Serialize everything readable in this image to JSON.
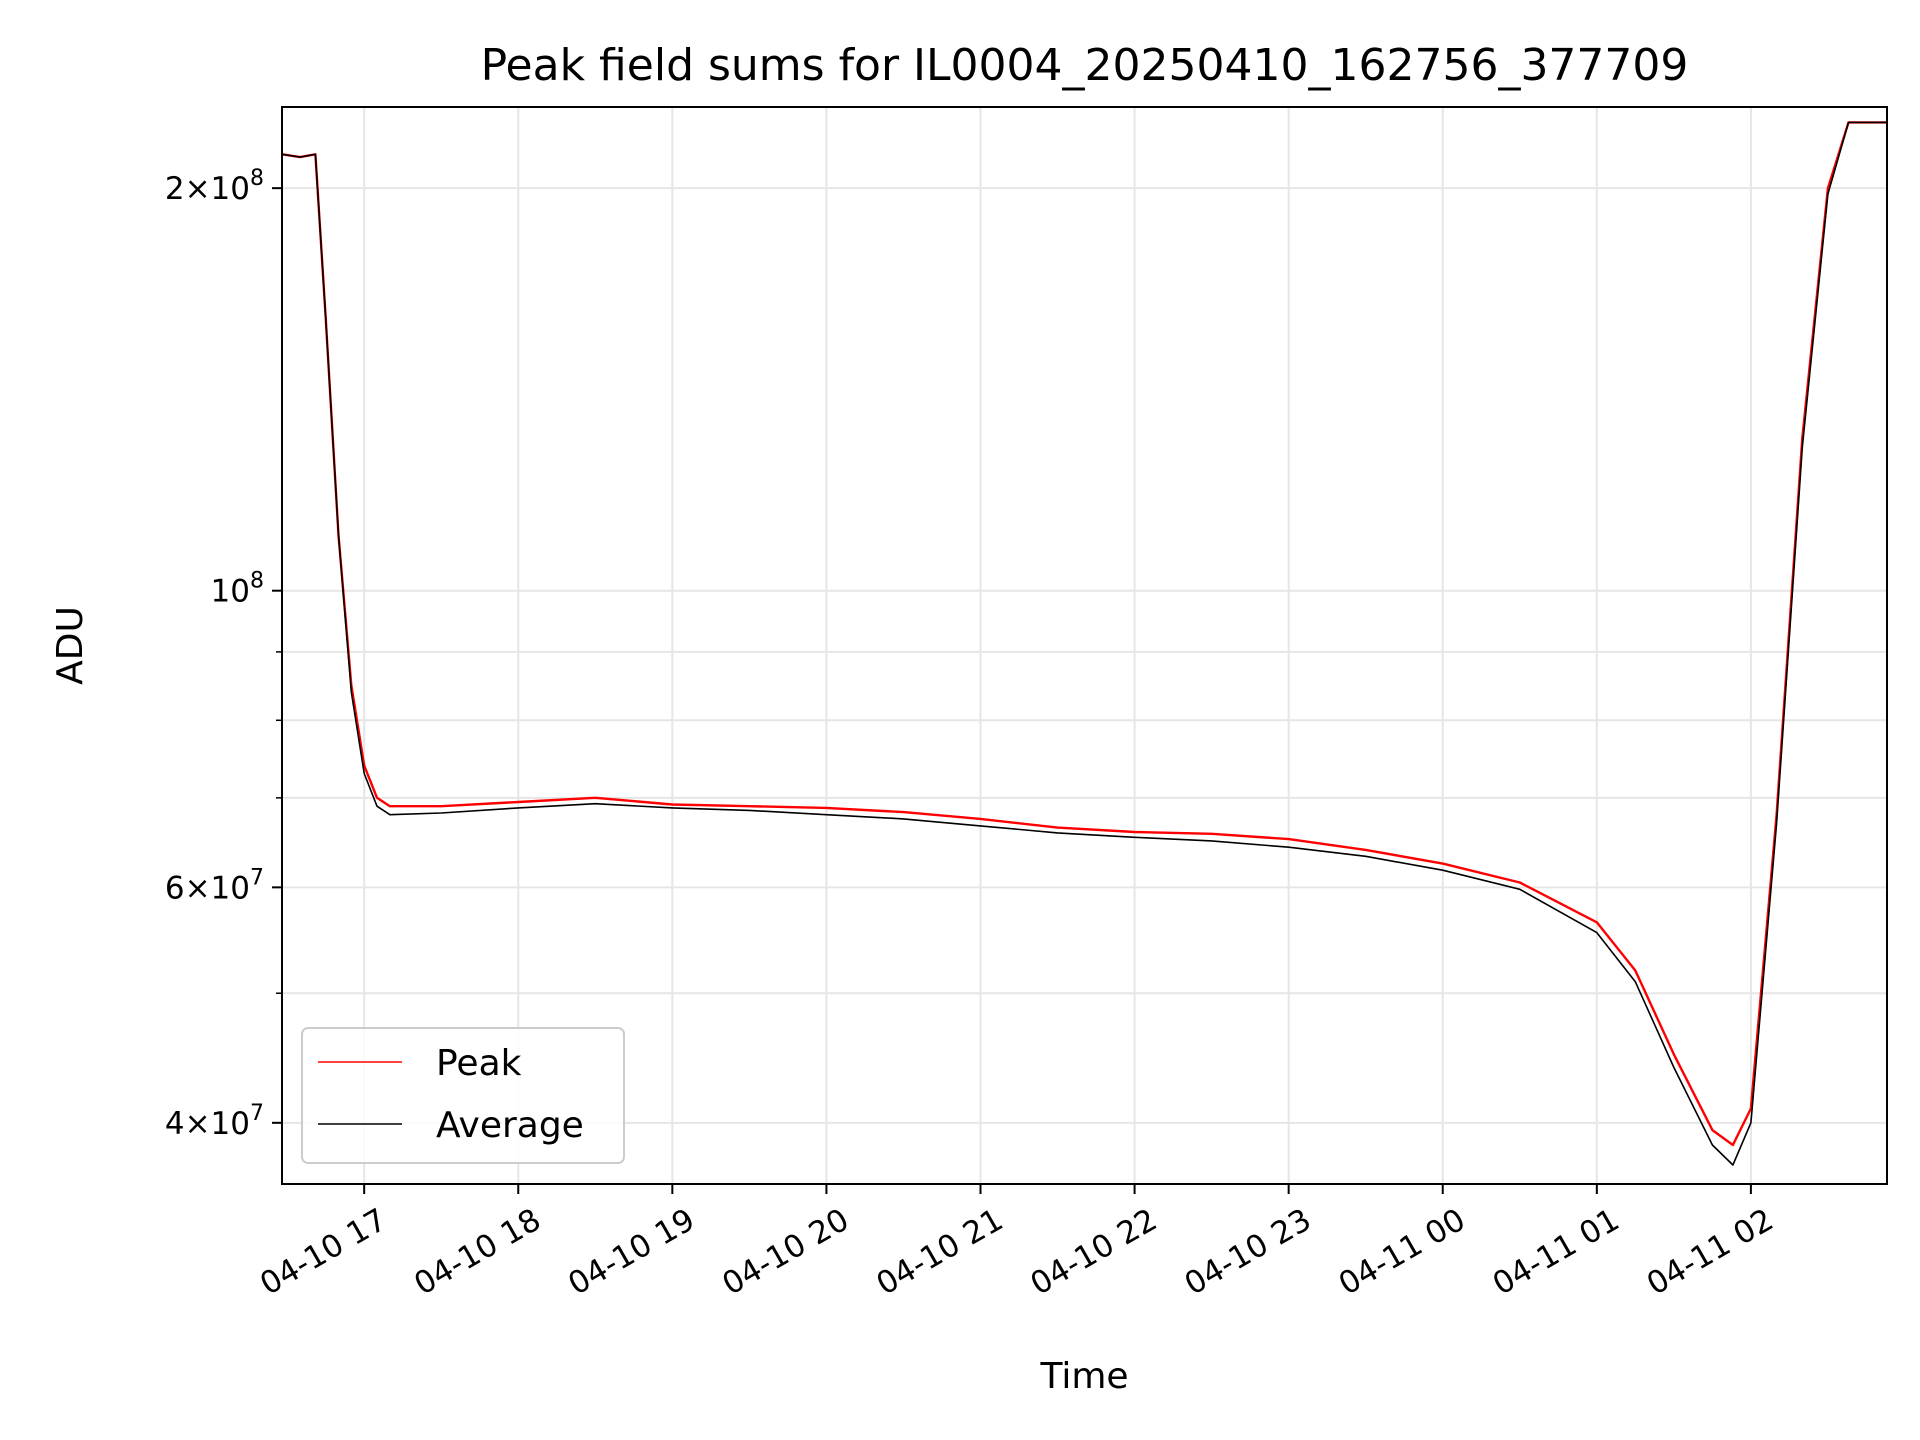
{
  "chart_data": {
    "type": "line",
    "title": "Peak field sums for IL0004_20250410_162756_377709",
    "xlabel": "Time",
    "ylabel": "ADU",
    "y_scale": "log",
    "ylim": [
      36000000,
      230000000
    ],
    "xlim": [
      "2025-04-10 16:28",
      "2025-04-11 02:53"
    ],
    "grid": true,
    "legend_position": "lower-left",
    "x_ticks": [
      {
        "label": "04-10 17",
        "time": "2025-04-10 17:00"
      },
      {
        "label": "04-10 18",
        "time": "2025-04-10 18:00"
      },
      {
        "label": "04-10 19",
        "time": "2025-04-10 19:00"
      },
      {
        "label": "04-10 20",
        "time": "2025-04-10 20:00"
      },
      {
        "label": "04-10 21",
        "time": "2025-04-10 21:00"
      },
      {
        "label": "04-10 22",
        "time": "2025-04-10 22:00"
      },
      {
        "label": "04-10 23",
        "time": "2025-04-10 23:00"
      },
      {
        "label": "04-11 00",
        "time": "2025-04-11 00:00"
      },
      {
        "label": "04-11 01",
        "time": "2025-04-11 01:00"
      },
      {
        "label": "04-11 02",
        "time": "2025-04-11 02:00"
      }
    ],
    "y_ticks": [
      {
        "value": 40000000,
        "mant": "4",
        "exp": "7"
      },
      {
        "value": 60000000,
        "mant": "6",
        "exp": "7"
      },
      {
        "value": 100000000,
        "mant": "",
        "exp": "8"
      },
      {
        "value": 200000000,
        "mant": "2",
        "exp": "8"
      }
    ],
    "y_minor_ticks": [
      50000000,
      70000000,
      80000000,
      90000000
    ],
    "series": [
      {
        "name": "Peak",
        "color": "#ff0000",
        "points": [
          [
            "2025-04-10 16:28",
            212000000
          ],
          [
            "2025-04-10 16:35",
            211000000
          ],
          [
            "2025-04-10 16:41",
            212000000
          ],
          [
            "2025-04-10 16:45",
            160000000
          ],
          [
            "2025-04-10 16:50",
            110000000
          ],
          [
            "2025-04-10 16:55",
            85000000
          ],
          [
            "2025-04-10 17:00",
            74000000
          ],
          [
            "2025-04-10 17:05",
            70000000
          ],
          [
            "2025-04-10 17:10",
            69000000
          ],
          [
            "2025-04-10 17:30",
            69000000
          ],
          [
            "2025-04-10 18:00",
            69500000
          ],
          [
            "2025-04-10 18:30",
            70000000
          ],
          [
            "2025-04-10 19:00",
            69200000
          ],
          [
            "2025-04-10 19:30",
            69000000
          ],
          [
            "2025-04-10 20:00",
            68800000
          ],
          [
            "2025-04-10 20:30",
            68300000
          ],
          [
            "2025-04-10 21:00",
            67500000
          ],
          [
            "2025-04-10 21:30",
            66500000
          ],
          [
            "2025-04-10 22:00",
            66000000
          ],
          [
            "2025-04-10 22:30",
            65800000
          ],
          [
            "2025-04-10 23:00",
            65200000
          ],
          [
            "2025-04-10 23:30",
            64000000
          ],
          [
            "2025-04-11 00:00",
            62500000
          ],
          [
            "2025-04-11 00:30",
            60500000
          ],
          [
            "2025-04-11 01:00",
            56500000
          ],
          [
            "2025-04-11 01:15",
            52000000
          ],
          [
            "2025-04-11 01:30",
            45000000
          ],
          [
            "2025-04-11 01:45",
            39500000
          ],
          [
            "2025-04-11 01:53",
            38500000
          ],
          [
            "2025-04-11 02:00",
            41000000
          ],
          [
            "2025-04-11 02:10",
            68000000
          ],
          [
            "2025-04-11 02:20",
            130000000
          ],
          [
            "2025-04-11 02:30",
            200000000
          ],
          [
            "2025-04-11 02:38",
            224000000
          ],
          [
            "2025-04-11 02:53",
            224000000
          ]
        ]
      },
      {
        "name": "Average",
        "color": "#000000",
        "points": [
          [
            "2025-04-10 16:28",
            212000000
          ],
          [
            "2025-04-10 16:35",
            211000000
          ],
          [
            "2025-04-10 16:41",
            212000000
          ],
          [
            "2025-04-10 16:45",
            160000000
          ],
          [
            "2025-04-10 16:50",
            110000000
          ],
          [
            "2025-04-10 16:55",
            84000000
          ],
          [
            "2025-04-10 17:00",
            73000000
          ],
          [
            "2025-04-10 17:05",
            69000000
          ],
          [
            "2025-04-10 17:10",
            68000000
          ],
          [
            "2025-04-10 17:30",
            68200000
          ],
          [
            "2025-04-10 18:00",
            68800000
          ],
          [
            "2025-04-10 18:30",
            69300000
          ],
          [
            "2025-04-10 19:00",
            68800000
          ],
          [
            "2025-04-10 19:30",
            68500000
          ],
          [
            "2025-04-10 20:00",
            68000000
          ],
          [
            "2025-04-10 20:30",
            67500000
          ],
          [
            "2025-04-10 21:00",
            66700000
          ],
          [
            "2025-04-10 21:30",
            65900000
          ],
          [
            "2025-04-10 22:00",
            65400000
          ],
          [
            "2025-04-10 22:30",
            65000000
          ],
          [
            "2025-04-10 23:00",
            64300000
          ],
          [
            "2025-04-10 23:30",
            63300000
          ],
          [
            "2025-04-11 00:00",
            61800000
          ],
          [
            "2025-04-11 00:30",
            59800000
          ],
          [
            "2025-04-11 01:00",
            55500000
          ],
          [
            "2025-04-11 01:15",
            51000000
          ],
          [
            "2025-04-11 01:30",
            44000000
          ],
          [
            "2025-04-11 01:45",
            38500000
          ],
          [
            "2025-04-11 01:53",
            37200000
          ],
          [
            "2025-04-11 02:00",
            40000000
          ],
          [
            "2025-04-11 02:10",
            67000000
          ],
          [
            "2025-04-11 02:20",
            128000000
          ],
          [
            "2025-04-11 02:30",
            198000000
          ],
          [
            "2025-04-11 02:38",
            224000000
          ],
          [
            "2025-04-11 02:53",
            224000000
          ]
        ]
      }
    ]
  }
}
